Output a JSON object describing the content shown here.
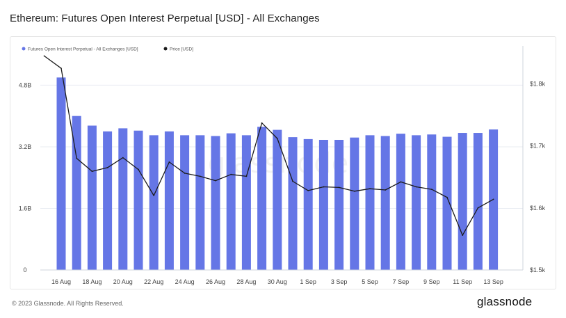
{
  "title": "Ethereum: Futures Open Interest Perpetual [USD] - All Exchanges",
  "footer": {
    "copyright": "© 2023 Glassnode. All Rights Reserved.",
    "logo": "glassnode"
  },
  "watermark": "glassnode",
  "colors": {
    "bar": "#6576e6",
    "line": "#1b1b1b",
    "grid": "#e9ecf2",
    "axis_text": "#444444"
  },
  "chart_data": {
    "type": "bar",
    "categories": [
      "16 Aug",
      "17 Aug",
      "18 Aug",
      "19 Aug",
      "20 Aug",
      "21 Aug",
      "22 Aug",
      "23 Aug",
      "24 Aug",
      "25 Aug",
      "26 Aug",
      "27 Aug",
      "28 Aug",
      "29 Aug",
      "30 Aug",
      "31 Aug",
      "1 Sep",
      "2 Sep",
      "3 Sep",
      "4 Sep",
      "5 Sep",
      "6 Sep",
      "7 Sep",
      "8 Sep",
      "9 Sep",
      "10 Sep",
      "11 Sep",
      "12 Sep",
      "13 Sep"
    ],
    "x_tick_labels": [
      "16 Aug",
      "18 Aug",
      "20 Aug",
      "22 Aug",
      "24 Aug",
      "26 Aug",
      "28 Aug",
      "30 Aug",
      "1 Sep",
      "3 Sep",
      "5 Sep",
      "7 Sep",
      "9 Sep",
      "11 Sep",
      "13 Sep"
    ],
    "series": [
      {
        "name": "Futures Open Interest Perpetual - All Exchanges [USD]",
        "axis": "left",
        "style": "bar",
        "color": "#6576e6",
        "values": [
          5.0,
          4.0,
          3.75,
          3.6,
          3.68,
          3.62,
          3.5,
          3.6,
          3.5,
          3.5,
          3.48,
          3.55,
          3.5,
          3.72,
          3.64,
          3.45,
          3.4,
          3.38,
          3.38,
          3.44,
          3.5,
          3.48,
          3.54,
          3.5,
          3.52,
          3.46,
          3.56,
          3.56,
          3.65
        ]
      },
      {
        "name": "Price [USD]",
        "axis": "right",
        "style": "line",
        "color": "#1b1b1b",
        "x": [
          14.9,
          16,
          17,
          18,
          19,
          20,
          21,
          22,
          23,
          24,
          25,
          26,
          27,
          28,
          29,
          30,
          31,
          32,
          33,
          34,
          35,
          36,
          37,
          38,
          39,
          40,
          41,
          42,
          43,
          44
        ],
        "values": [
          1845,
          1825,
          1680,
          1659,
          1665,
          1681,
          1662,
          1620,
          1674,
          1656,
          1651,
          1644,
          1654,
          1651,
          1737,
          1712,
          1643,
          1628,
          1634,
          1633,
          1627,
          1631,
          1629,
          1642,
          1634,
          1630,
          1617,
          1556,
          1600,
          1614
        ]
      }
    ],
    "y_left": {
      "ticks": [
        "0",
        "1.6B",
        "3.2B",
        "4.8B"
      ],
      "tick_values": [
        0,
        1.6,
        3.2,
        4.8
      ],
      "range": [
        0,
        5.35
      ]
    },
    "y_right": {
      "ticks": [
        "$1.5k",
        "$1.6k",
        "$1.7k",
        "$1.8k"
      ],
      "tick_values": [
        1500,
        1600,
        1700,
        1800
      ],
      "range": [
        1500,
        1832
      ]
    },
    "grid": true,
    "legend": {
      "placement": "top-left",
      "entries": [
        "Futures Open Interest Perpetual - All Exchanges [USD]",
        "Price [USD]"
      ]
    }
  }
}
